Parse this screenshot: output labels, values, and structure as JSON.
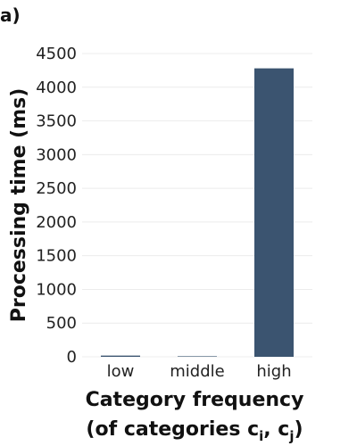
{
  "panel_label": "a)",
  "colors": {
    "bar": "#3b5470",
    "grid": "#ececec",
    "text": "#222222"
  },
  "chart_data": {
    "type": "bar",
    "categories": [
      "low",
      "middle",
      "high"
    ],
    "values": [
      18,
      8,
      4280
    ],
    "xlabel_line1": "Category frequency",
    "xlabel_line2_prefix": "(of categories c",
    "xlabel_sub_i": "i",
    "xlabel_sep": ", c",
    "xlabel_sub_j": "j",
    "xlabel_suffix": ")",
    "ylabel": "Processing time (ms)",
    "ylim": [
      0,
      4500
    ],
    "yticks": [
      0,
      500,
      1000,
      1500,
      2000,
      2500,
      3000,
      3500,
      4000,
      4500
    ],
    "grid": true,
    "legend": "none"
  }
}
